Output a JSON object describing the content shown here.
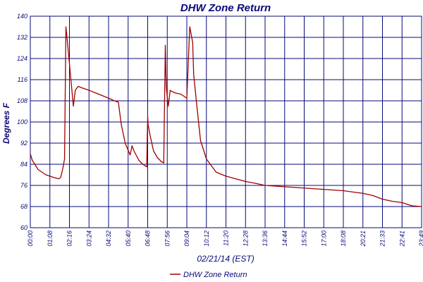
{
  "chart_data": {
    "type": "line",
    "title": "DHW Zone Return",
    "xlabel": "02/21/14 (EST)",
    "ylabel": "Degrees F",
    "ylim": [
      60,
      140
    ],
    "yticks": [
      "60",
      "68",
      "76",
      "84",
      "92",
      "100",
      "108",
      "116",
      "124",
      "132",
      "140"
    ],
    "xticks": [
      "00:00",
      "01:08",
      "02:16",
      "03:24",
      "04:32",
      "05:40",
      "06:48",
      "07:56",
      "09:04",
      "10:12",
      "11:20",
      "12:28",
      "13:36",
      "14:44",
      "15:52",
      "17:00",
      "18:08",
      "20:21",
      "21:33",
      "22:41",
      "23:49"
    ],
    "grid": true,
    "legend_position": "bottom",
    "colors": {
      "line": "#a00000",
      "grid": "#0a0a78",
      "text": "#0a0a78"
    },
    "series": [
      {
        "name": "DHW Zone Return",
        "x_tick_index": [
          0,
          0.1,
          0.4,
          0.8,
          1.2,
          1.45,
          1.55,
          1.65,
          1.75,
          1.82,
          1.9,
          2.05,
          2.2,
          2.3,
          2.45,
          2.6,
          3.0,
          3.5,
          4.0,
          4.3,
          4.5,
          4.65,
          4.85,
          5.1,
          5.2,
          5.3,
          5.55,
          5.75,
          5.95,
          6.0,
          6.02,
          6.12,
          6.3,
          6.5,
          6.7,
          6.82,
          6.9,
          6.95,
          7.05,
          7.15,
          7.25,
          7.4,
          7.7,
          8.0,
          8.15,
          8.3,
          8.35,
          8.5,
          8.7,
          9.0,
          9.5,
          10.0,
          10.5,
          11.0,
          11.5,
          12.0,
          13.0,
          14.0,
          15.0,
          16.0,
          17.0,
          17.5,
          18.0,
          18.5,
          19.0,
          19.5,
          20.0
        ],
        "values": [
          88,
          85.5,
          82,
          80,
          79,
          78.5,
          79,
          82,
          86,
          136,
          130,
          118,
          106,
          112,
          113.5,
          113,
          112,
          110.5,
          109,
          108,
          107.5,
          99,
          92,
          87.5,
          91,
          89,
          85.5,
          84,
          83,
          102,
          99,
          95,
          89,
          86.5,
          85,
          84.5,
          129,
          113,
          106,
          112,
          111.5,
          111,
          110.5,
          109,
          136,
          130,
          118,
          107,
          93,
          86,
          81,
          79.5,
          78.5,
          77.5,
          76.8,
          76,
          75.5,
          75,
          74.5,
          74,
          73,
          72.2,
          70.8,
          70,
          69.5,
          68.3,
          68
        ]
      }
    ]
  }
}
